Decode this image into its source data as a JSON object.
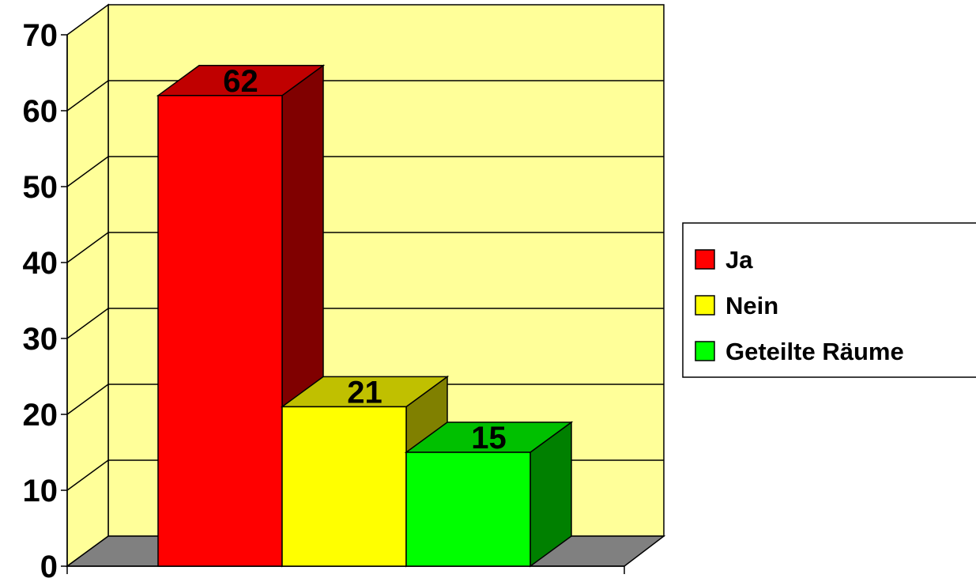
{
  "chart_data": {
    "type": "bar",
    "title": "",
    "xlabel": "",
    "ylabel": "",
    "ylim": [
      0,
      70
    ],
    "yticks": [
      0,
      10,
      20,
      30,
      40,
      50,
      60,
      70
    ],
    "grid": true,
    "legend_position": "right",
    "series": [
      {
        "name": "Ja",
        "value": 62,
        "color": "#ff0000",
        "side_color": "#800000",
        "top_color": "#c00000"
      },
      {
        "name": "Nein",
        "value": 21,
        "color": "#ffff00",
        "side_color": "#808000",
        "top_color": "#c0c000"
      },
      {
        "name": "Geteilte Räume",
        "value": 15,
        "color": "#00ff00",
        "side_color": "#008000",
        "top_color": "#00c000"
      }
    ]
  },
  "colors": {
    "wall": "#ffff99",
    "floor": "#808080",
    "gridline": "#000000"
  }
}
